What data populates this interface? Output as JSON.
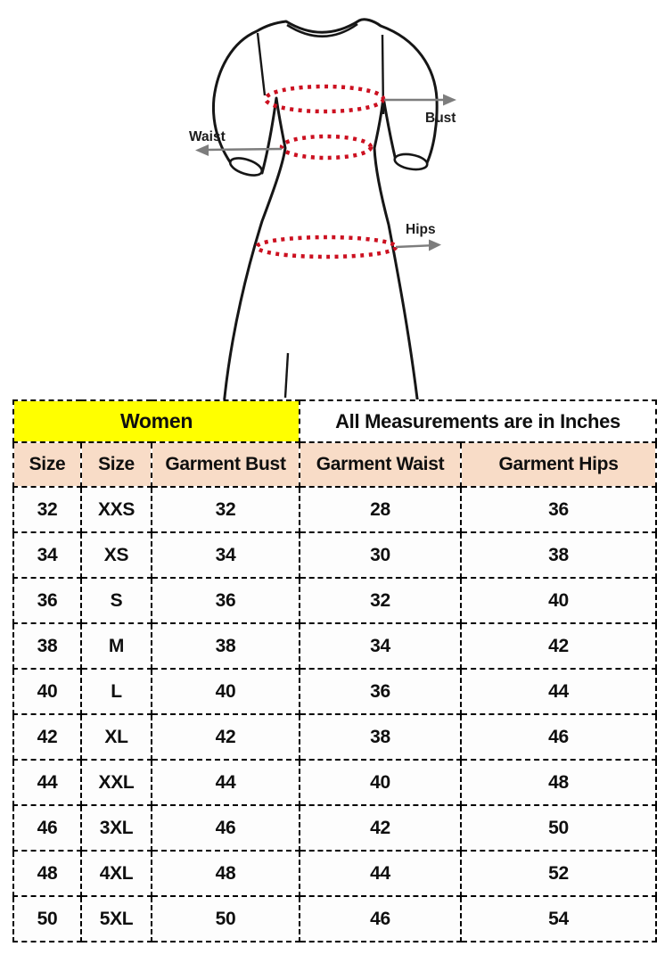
{
  "figure": {
    "labels": {
      "bust": "Bust",
      "waist": "Waist",
      "hips": "Hips"
    },
    "colors": {
      "outline": "#161616",
      "dots": "#cc1020",
      "arrow": "#7d7d7d",
      "label": "#1c1c1c"
    }
  },
  "size_chart": {
    "group_headers": {
      "women_label": "Women",
      "units_label": "All Measurements are in Inches"
    },
    "colors": {
      "women_bg": "#ffff00",
      "header_bg": "#f8dcc7",
      "row_bg": "#fdfdfd",
      "border": "#000000"
    },
    "columns": [
      {
        "label": "Size"
      },
      {
        "label": "Size"
      },
      {
        "label": "Garment Bust"
      },
      {
        "label": "Garment Waist"
      },
      {
        "label": "Garment Hips"
      }
    ],
    "rows": [
      [
        "32",
        "XXS",
        "32",
        "28",
        "36"
      ],
      [
        "34",
        "XS",
        "34",
        "30",
        "38"
      ],
      [
        "36",
        "S",
        "36",
        "32",
        "40"
      ],
      [
        "38",
        "M",
        "38",
        "34",
        "42"
      ],
      [
        "40",
        "L",
        "40",
        "36",
        "44"
      ],
      [
        "42",
        "XL",
        "42",
        "38",
        "46"
      ],
      [
        "44",
        "XXL",
        "44",
        "40",
        "48"
      ],
      [
        "46",
        "3XL",
        "46",
        "42",
        "50"
      ],
      [
        "48",
        "4XL",
        "48",
        "44",
        "52"
      ],
      [
        "50",
        "5XL",
        "50",
        "46",
        "54"
      ]
    ]
  }
}
